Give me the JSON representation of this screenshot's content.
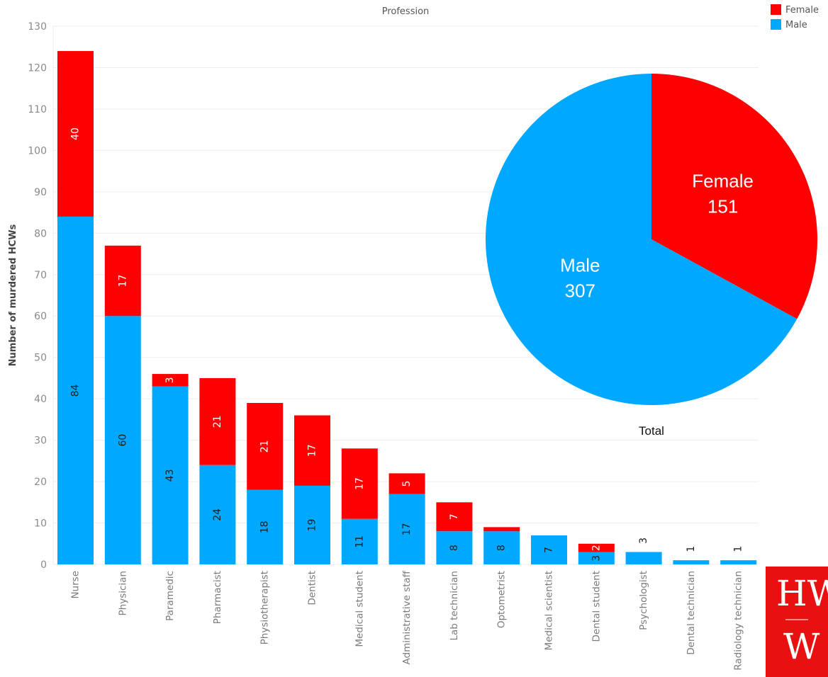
{
  "colors": {
    "female": "#ff0000",
    "male": "#00a8ff",
    "grid": "#eeeeee",
    "logo_bg": "#e81010"
  },
  "chart_data": [
    {
      "type": "bar",
      "stacked": true,
      "title": "Profession",
      "ylabel": "Number of murdered HCWs",
      "ylim": [
        0,
        130
      ],
      "yticks": [
        0,
        10,
        20,
        30,
        40,
        50,
        60,
        70,
        80,
        90,
        100,
        110,
        120,
        130
      ],
      "grid": true,
      "categories": [
        "Nurse",
        "Physician",
        "Paramedic",
        "Pharmacist",
        "Physiotherapist",
        "Dentist",
        "Medical student",
        "Administrative staff",
        "Lab technician",
        "Optometrist",
        "Medical scientist",
        "Dental student",
        "Psychologist",
        "Dental technician",
        "Radiology technician"
      ],
      "series": [
        {
          "name": "Male",
          "color": "#00a8ff",
          "values": [
            84,
            60,
            43,
            24,
            18,
            19,
            11,
            17,
            8,
            8,
            7,
            3,
            3,
            1,
            1
          ],
          "labels": [
            "84",
            "60",
            "43",
            "24",
            "18",
            "19",
            "11",
            "17",
            "8",
            "8",
            "7",
            "3",
            "3",
            "1",
            "1"
          ]
        },
        {
          "name": "Female",
          "color": "#ff0000",
          "values": [
            40,
            17,
            3,
            21,
            21,
            17,
            17,
            5,
            7,
            1,
            0,
            2,
            0,
            0,
            0
          ],
          "labels": [
            "40",
            "17",
            "3",
            "21",
            "21",
            "17",
            "17",
            "5",
            "7",
            "",
            "",
            "2",
            "",
            "",
            ""
          ]
        }
      ],
      "legend": {
        "placement": "top-right",
        "entries": [
          "Female",
          "Male"
        ]
      }
    },
    {
      "type": "pie",
      "caption": "Total",
      "slices": [
        {
          "name": "Female",
          "value": 151,
          "color": "#ff0000"
        },
        {
          "name": "Male",
          "value": 307,
          "color": "#00a8ff"
        }
      ]
    }
  ],
  "logo": {
    "top": "HW",
    "bottom": "W"
  }
}
